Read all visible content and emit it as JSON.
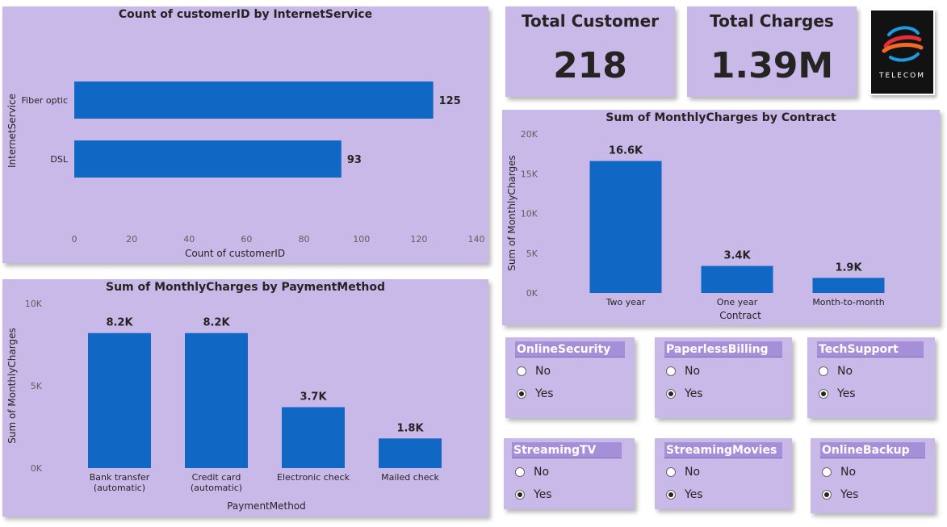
{
  "chart_data": [
    {
      "id": "internet",
      "type": "bar",
      "orientation": "horizontal",
      "title": "Count of customerID by InternetService",
      "categories": [
        "Fiber optic",
        "DSL"
      ],
      "values": [
        125,
        93
      ],
      "value_labels": [
        "125",
        "93"
      ],
      "xlabel": "Count of customerID",
      "ylabel": "InternetService",
      "xlim": [
        0,
        140
      ],
      "xticks": [
        "0",
        "20",
        "40",
        "60",
        "80",
        "100",
        "120",
        "140"
      ],
      "color": "#1068c4",
      "grid": false
    },
    {
      "id": "payment",
      "type": "bar",
      "title": "Sum of MonthlyCharges by PaymentMethod",
      "categories": [
        [
          "Bank transfer",
          "(automatic)"
        ],
        [
          "Credit card",
          "(automatic)"
        ],
        [
          "Electronic check"
        ],
        [
          "Mailed check"
        ]
      ],
      "values": [
        8200,
        8200,
        3700,
        1800
      ],
      "value_labels": [
        "8.2K",
        "8.2K",
        "3.7K",
        "1.8K"
      ],
      "xlabel": "PaymentMethod",
      "ylabel": "Sum of MonthlyCharges",
      "ylim": [
        0,
        10000
      ],
      "yticks": [
        {
          "v": 0,
          "t": "0K"
        },
        {
          "v": 5000,
          "t": "5K"
        },
        {
          "v": 10000,
          "t": "10K"
        }
      ],
      "color": "#1068c4",
      "grid": false
    },
    {
      "id": "contract",
      "type": "bar",
      "title": "Sum of MonthlyCharges by Contract",
      "categories": [
        [
          "Two year"
        ],
        [
          "One year"
        ],
        [
          "Month-to-month"
        ]
      ],
      "values": [
        16600,
        3400,
        1900
      ],
      "value_labels": [
        "16.6K",
        "3.4K",
        "1.9K"
      ],
      "xlabel": "Contract",
      "ylabel": "Sum of MonthlyCharges",
      "ylim": [
        0,
        20000
      ],
      "yticks": [
        {
          "v": 0,
          "t": "0K"
        },
        {
          "v": 5000,
          "t": "5K"
        },
        {
          "v": 10000,
          "t": "10K"
        },
        {
          "v": 15000,
          "t": "15K"
        },
        {
          "v": 20000,
          "t": "20K"
        }
      ],
      "color": "#1068c4",
      "grid": false
    }
  ],
  "kpis": {
    "total_customer": {
      "label": "Total Customer",
      "value": "218"
    },
    "total_charges": {
      "label": "Total Charges",
      "value": "1.39M"
    }
  },
  "logo": {
    "text": "TELECOM",
    "icon": "telecom-swirl-logo",
    "colors": [
      "#1e9be0",
      "#f26a24",
      "#e0303a"
    ]
  },
  "slicers": [
    {
      "title": "OnlineSecurity",
      "options": [
        "No",
        "Yes"
      ],
      "selected": "Yes"
    },
    {
      "title": "PaperlessBilling",
      "options": [
        "No",
        "Yes"
      ],
      "selected": "Yes"
    },
    {
      "title": "TechSupport",
      "options": [
        "No",
        "Yes"
      ],
      "selected": "Yes"
    },
    {
      "title": "StreamingTV",
      "options": [
        "No",
        "Yes"
      ],
      "selected": "Yes"
    },
    {
      "title": "StreamingMovies",
      "options": [
        "No",
        "Yes"
      ],
      "selected": "Yes"
    },
    {
      "title": "OnlineBackup",
      "options": [
        "No",
        "Yes"
      ],
      "selected": "Yes"
    }
  ],
  "colors": {
    "card": "#c8b9e8",
    "bar": "#1068c4",
    "slicer_header": "#a58fd9"
  }
}
